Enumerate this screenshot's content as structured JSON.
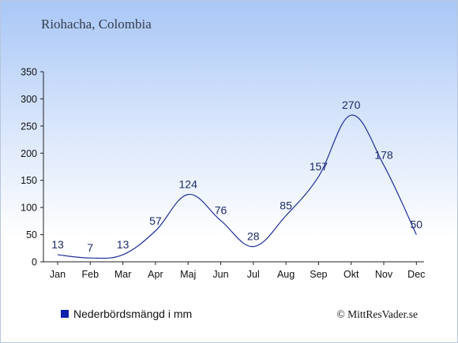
{
  "title": "Riohacha, Colombia",
  "copyright": "© MittResVader.se",
  "colors": {
    "line": "#1f2f9a",
    "label": "#1b2a6b",
    "swatch": "#1020a8",
    "axis": "#222222"
  },
  "chart_data": {
    "type": "line",
    "categories": [
      "Jan",
      "Feb",
      "Mar",
      "Apr",
      "Maj",
      "Jun",
      "Jul",
      "Aug",
      "Sep",
      "Okt",
      "Nov",
      "Dec"
    ],
    "series": [
      {
        "name": "Nederbördsmängd i mm",
        "values": [
          13,
          7,
          13,
          57,
          124,
          76,
          28,
          85,
          157,
          270,
          178,
          50
        ]
      }
    ],
    "ylim": [
      0,
      350
    ],
    "yticks": [
      0,
      50,
      100,
      150,
      200,
      250,
      300,
      350
    ],
    "grid": false,
    "legend": "bottom-left",
    "title": "",
    "xlabel": "",
    "ylabel": ""
  }
}
